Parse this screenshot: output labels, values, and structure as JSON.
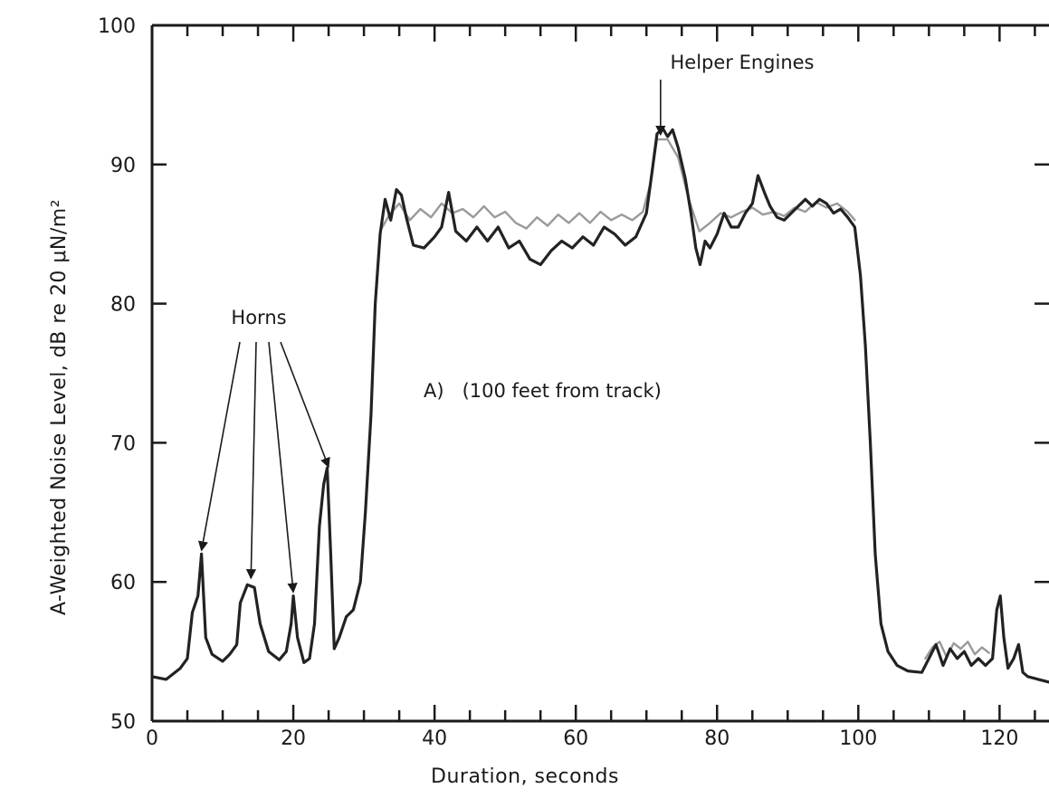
{
  "chart_data": {
    "type": "line",
    "xlabel": "Duration, seconds",
    "ylabel": "A-Weighted Noise Level, dB re 20 μN/m²",
    "xlim": [
      0,
      127
    ],
    "ylim": [
      50,
      100
    ],
    "x_ticks": [
      0,
      20,
      40,
      60,
      80,
      100,
      120
    ],
    "y_ticks": [
      50,
      60,
      70,
      80,
      90,
      100
    ],
    "grid": false,
    "annotations": {
      "helper_engines": {
        "text": "Helper Engines",
        "target": [
          72,
          92
        ]
      },
      "horns": {
        "text": "Horns",
        "targets": [
          [
            7,
            62
          ],
          [
            14,
            60
          ],
          [
            20,
            59
          ],
          [
            25,
            68
          ]
        ]
      },
      "condition": "A)   (100 feet from track)"
    },
    "series": [
      {
        "color": "#222222",
        "points": [
          [
            0,
            53.2
          ],
          [
            2,
            53.0
          ],
          [
            4,
            53.8
          ],
          [
            5,
            54.5
          ],
          [
            5.7,
            57.8
          ],
          [
            6.5,
            59
          ],
          [
            7,
            62
          ],
          [
            7.6,
            56
          ],
          [
            8.5,
            54.8
          ],
          [
            10,
            54.3
          ],
          [
            11,
            54.8
          ],
          [
            12,
            55.5
          ],
          [
            12.5,
            58.5
          ],
          [
            13.5,
            59.8
          ],
          [
            14.5,
            59.6
          ],
          [
            15.3,
            57
          ],
          [
            16.5,
            55
          ],
          [
            18,
            54.4
          ],
          [
            19,
            55
          ],
          [
            19.7,
            57
          ],
          [
            20,
            59
          ],
          [
            20.6,
            56
          ],
          [
            21.5,
            54.2
          ],
          [
            22.3,
            54.5
          ],
          [
            23,
            57
          ],
          [
            23.7,
            64
          ],
          [
            24.3,
            67
          ],
          [
            24.8,
            68.2
          ],
          [
            25.3,
            62
          ],
          [
            25.8,
            55.2
          ],
          [
            26.5,
            56
          ],
          [
            27.5,
            57.5
          ],
          [
            28.5,
            58
          ],
          [
            29.5,
            60
          ],
          [
            30.2,
            65
          ],
          [
            31,
            72
          ],
          [
            31.6,
            80
          ],
          [
            32.3,
            85
          ],
          [
            33,
            87.5
          ],
          [
            33.8,
            86
          ],
          [
            34.6,
            88.2
          ],
          [
            35.3,
            87.8
          ],
          [
            36,
            86.2
          ],
          [
            37,
            84.2
          ],
          [
            38.5,
            84
          ],
          [
            40,
            84.8
          ],
          [
            41,
            85.5
          ],
          [
            42,
            88
          ],
          [
            43,
            85.2
          ],
          [
            44.5,
            84.5
          ],
          [
            46,
            85.5
          ],
          [
            47.5,
            84.5
          ],
          [
            49,
            85.5
          ],
          [
            50.5,
            84
          ],
          [
            52,
            84.5
          ],
          [
            53.5,
            83.2
          ],
          [
            55,
            82.8
          ],
          [
            56.5,
            83.8
          ],
          [
            58,
            84.5
          ],
          [
            59.5,
            84
          ],
          [
            61,
            84.8
          ],
          [
            62.5,
            84.2
          ],
          [
            64,
            85.5
          ],
          [
            65.5,
            85
          ],
          [
            67,
            84.2
          ],
          [
            68.5,
            84.8
          ],
          [
            70,
            86.5
          ],
          [
            70.8,
            89.5
          ],
          [
            71.5,
            92.2
          ],
          [
            72.3,
            92.6
          ],
          [
            73,
            92
          ],
          [
            73.7,
            92.5
          ],
          [
            74.5,
            91.2
          ],
          [
            75.5,
            89
          ],
          [
            76.3,
            86.5
          ],
          [
            77,
            84
          ],
          [
            77.6,
            82.8
          ],
          [
            78.3,
            84.5
          ],
          [
            79,
            84
          ],
          [
            80,
            85
          ],
          [
            81,
            86.5
          ],
          [
            82,
            85.5
          ],
          [
            83,
            85.5
          ],
          [
            84,
            86.5
          ],
          [
            85,
            87.2
          ],
          [
            85.8,
            89.2
          ],
          [
            86.7,
            88
          ],
          [
            87.5,
            87
          ],
          [
            88.5,
            86.2
          ],
          [
            89.5,
            86
          ],
          [
            90.5,
            86.5
          ],
          [
            91.5,
            87
          ],
          [
            92.5,
            87.5
          ],
          [
            93.5,
            87
          ],
          [
            94.5,
            87.5
          ],
          [
            95.5,
            87.2
          ],
          [
            96.5,
            86.5
          ],
          [
            97.5,
            86.8
          ],
          [
            98.5,
            86.2
          ],
          [
            99.5,
            85.5
          ],
          [
            100.3,
            82
          ],
          [
            101,
            77
          ],
          [
            101.7,
            70
          ],
          [
            102.4,
            62
          ],
          [
            103.2,
            57
          ],
          [
            104.2,
            55
          ],
          [
            105.5,
            54
          ],
          [
            107,
            53.6
          ],
          [
            109,
            53.5
          ],
          [
            110,
            54.5
          ],
          [
            111,
            55.5
          ],
          [
            112,
            54
          ],
          [
            113,
            55.2
          ],
          [
            114,
            54.5
          ],
          [
            115,
            55
          ],
          [
            116,
            54
          ],
          [
            117,
            54.5
          ],
          [
            118,
            54
          ],
          [
            119,
            54.5
          ],
          [
            119.6,
            58
          ],
          [
            120.1,
            59
          ],
          [
            120.6,
            56
          ],
          [
            121.2,
            53.8
          ],
          [
            122,
            54.5
          ],
          [
            122.7,
            55.5
          ],
          [
            123.3,
            53.5
          ],
          [
            124,
            53.2
          ],
          [
            125.5,
            53
          ],
          [
            127,
            52.8
          ]
        ]
      },
      {
        "color": "#9a9a9a",
        "points": [
          [
            32.3,
            85.2
          ],
          [
            33.5,
            86.3
          ],
          [
            35,
            87.2
          ],
          [
            36.5,
            86
          ],
          [
            38,
            86.8
          ],
          [
            39.5,
            86.2
          ],
          [
            41,
            87.2
          ],
          [
            42.5,
            86.5
          ],
          [
            44,
            86.8
          ],
          [
            45.5,
            86.2
          ],
          [
            47,
            87
          ],
          [
            48.5,
            86.2
          ],
          [
            50,
            86.6
          ],
          [
            51.5,
            85.8
          ],
          [
            53,
            85.4
          ],
          [
            54.5,
            86.2
          ],
          [
            56,
            85.6
          ],
          [
            57.5,
            86.4
          ],
          [
            59,
            85.8
          ],
          [
            60.5,
            86.5
          ],
          [
            62,
            85.8
          ],
          [
            63.5,
            86.6
          ],
          [
            65,
            86
          ],
          [
            66.5,
            86.4
          ],
          [
            68,
            86
          ],
          [
            69.5,
            86.6
          ],
          [
            70.5,
            88.5
          ],
          [
            71.5,
            91.8
          ],
          [
            73,
            91.8
          ],
          [
            74.5,
            90.5
          ],
          [
            76,
            87.5
          ],
          [
            77.5,
            85.2
          ],
          [
            79,
            85.8
          ],
          [
            80.5,
            86.5
          ],
          [
            82,
            86.2
          ],
          [
            83.5,
            86.6
          ],
          [
            85,
            86.9
          ],
          [
            86.5,
            86.4
          ],
          [
            88,
            86.6
          ],
          [
            89.5,
            86.3
          ],
          [
            91,
            86.9
          ],
          [
            92.5,
            86.6
          ],
          [
            94,
            87.3
          ],
          [
            95.5,
            86.9
          ],
          [
            97,
            87.2
          ],
          [
            98.5,
            86.6
          ],
          [
            99.5,
            86
          ]
        ]
      },
      {
        "color": "#9a9a9a",
        "points": [
          [
            109.5,
            54.5
          ],
          [
            110.5,
            55.3
          ],
          [
            111.5,
            55.7
          ],
          [
            112.5,
            54.6
          ],
          [
            113.5,
            55.6
          ],
          [
            114.5,
            55.2
          ],
          [
            115.5,
            55.7
          ],
          [
            116.5,
            54.8
          ],
          [
            117.5,
            55.3
          ],
          [
            118.5,
            54.9
          ]
        ]
      }
    ]
  }
}
